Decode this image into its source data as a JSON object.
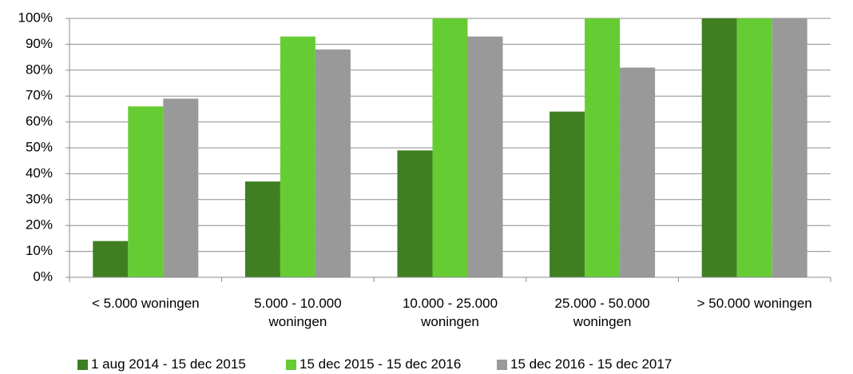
{
  "chart_data": {
    "type": "bar",
    "categories": [
      "< 5.000 woningen",
      "5.000 - 10.000 woningen",
      "10.000 - 25.000 woningen",
      "25.000 - 50.000 woningen",
      "> 50.000 woningen"
    ],
    "series": [
      {
        "name": "1 aug 2014 - 15 dec 2015",
        "color": "#3f7f22",
        "values": [
          14,
          37,
          49,
          64,
          100
        ]
      },
      {
        "name": "15 dec 2015 - 15 dec 2016",
        "color": "#66cc33",
        "values": [
          66,
          93,
          100,
          100,
          100
        ]
      },
      {
        "name": "15 dec 2016 - 15 dec 2017",
        "color": "#999999",
        "values": [
          69,
          88,
          93,
          81,
          100
        ]
      }
    ],
    "ylim": [
      0,
      100
    ],
    "yticks": [
      {
        "value": 0,
        "label": "0%"
      },
      {
        "value": 10,
        "label": "10%"
      },
      {
        "value": 20,
        "label": "20%"
      },
      {
        "value": 30,
        "label": "30%"
      },
      {
        "value": 40,
        "label": "40%"
      },
      {
        "value": 50,
        "label": "50%"
      },
      {
        "value": 60,
        "label": "60%"
      },
      {
        "value": 70,
        "label": "70%"
      },
      {
        "value": 80,
        "label": "80%"
      },
      {
        "value": 90,
        "label": "90%"
      },
      {
        "value": 100,
        "label": "100%"
      }
    ],
    "grid": true,
    "legend": "bottom"
  }
}
